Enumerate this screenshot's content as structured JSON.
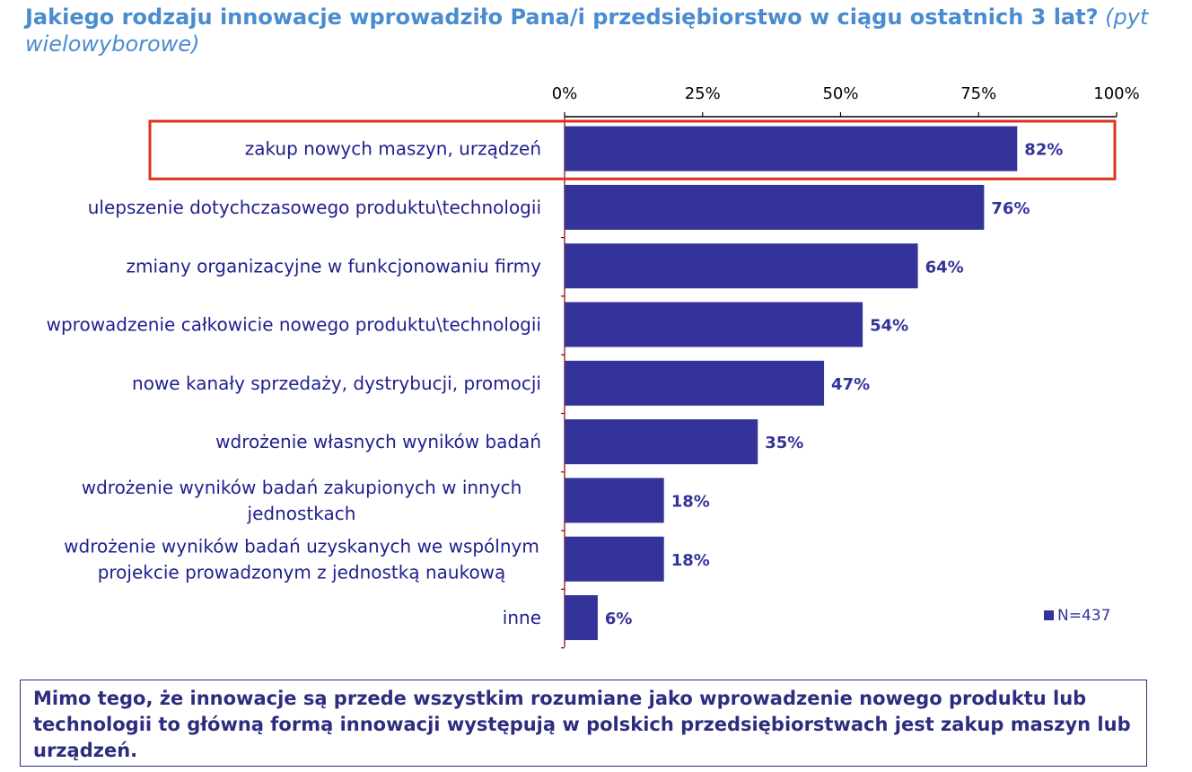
{
  "title": {
    "question": "Jakiego rodzaju innowacje wprowadziło Pana/i przedsiębiorstwo w ciągu ostatnich 3 lat?",
    "note": "(pyt wielowyborowe)"
  },
  "colors": {
    "bar": "#333399",
    "highlight": "#e0301e",
    "axis": "#800000",
    "label": "#1f1f8f",
    "title": "#4a8ccf"
  },
  "chart_data": {
    "type": "bar",
    "orientation": "horizontal",
    "categories": [
      "zakup nowych maszyn, urządzeń",
      "ulepszenie dotychczasowego produktu\\technologii",
      "zmiany organizacyjne w funkcjonowaniu firmy",
      "wprowadzenie całkowicie nowego produktu\\technologii",
      "nowe kanały sprzedaży, dystrybucji, promocji",
      "wdrożenie własnych wyników badań",
      "wdrożenie wyników badań zakupionych w innych jednostkach",
      "wdrożenie wyników badań uzyskanych we wspólnym projekcie prowadzonym z jednostką naukową",
      "inne"
    ],
    "category_lines": [
      [
        "zakup nowych maszyn, urządzeń"
      ],
      [
        "ulepszenie dotychczasowego produktu\\technologii"
      ],
      [
        "zmiany organizacyjne w funkcjonowaniu firmy"
      ],
      [
        "wprowadzenie całkowicie nowego produktu\\technologii"
      ],
      [
        "nowe kanały sprzedaży, dystrybucji, promocji"
      ],
      [
        "wdrożenie własnych wyników badań"
      ],
      [
        "wdrożenie wyników badań zakupionych w innych",
        "jednostkach"
      ],
      [
        "wdrożenie wyników badań uzyskanych we wspólnym",
        "projekcie prowadzonym z jednostką naukową"
      ],
      [
        "inne"
      ]
    ],
    "values": [
      82,
      76,
      64,
      54,
      47,
      35,
      18,
      18,
      6
    ],
    "data_labels": [
      "82%",
      "76%",
      "64%",
      "54%",
      "47%",
      "35%",
      "18%",
      "18%",
      "6%"
    ],
    "xlim": [
      0,
      100
    ],
    "x_ticks": [
      "0%",
      "25%",
      "50%",
      "75%",
      "100%"
    ],
    "highlighted_category_index": 0,
    "legend": "N=437",
    "legend_position": "bottom-right"
  },
  "summary": "Mimo tego, że innowacje są przede wszystkim rozumiane jako wprowadzenie nowego produktu lub technologii to główną formą innowacji  występują w polskich przedsiębiorstwach jest zakup maszyn lub urządzeń."
}
